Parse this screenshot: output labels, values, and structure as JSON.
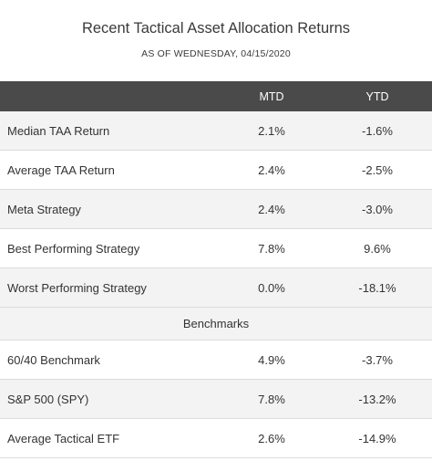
{
  "chart_data": {
    "type": "table",
    "title": "Recent Tactical Asset Allocation Returns",
    "subtitle": "AS OF WEDNESDAY, 04/15/2020",
    "columns": [
      "",
      "MTD",
      "YTD"
    ],
    "rows": [
      {
        "name": "Median TAA Return",
        "mtd": "2.1%",
        "ytd": "-1.6%"
      },
      {
        "name": "Average TAA Return",
        "mtd": "2.4%",
        "ytd": "-2.5%"
      },
      {
        "name": "Meta Strategy",
        "mtd": "2.4%",
        "ytd": "-3.0%"
      },
      {
        "name": "Best Performing Strategy",
        "mtd": "7.8%",
        "ytd": "9.6%"
      },
      {
        "name": "Worst Performing Strategy",
        "mtd": "0.0%",
        "ytd": "-18.1%"
      }
    ],
    "section_label": "Benchmarks",
    "benchmark_rows": [
      {
        "name": "60/40 Benchmark",
        "mtd": "4.9%",
        "ytd": "-3.7%"
      },
      {
        "name": "S&P 500 (SPY)",
        "mtd": "7.8%",
        "ytd": "-13.2%"
      },
      {
        "name": "Average Tactical ETF",
        "mtd": "2.6%",
        "ytd": "-14.9%"
      }
    ]
  },
  "colors": {
    "header_bg": "#4a4a4a",
    "row_alt_bg": "#f3f3f3",
    "divider": "#dcdcdc"
  }
}
